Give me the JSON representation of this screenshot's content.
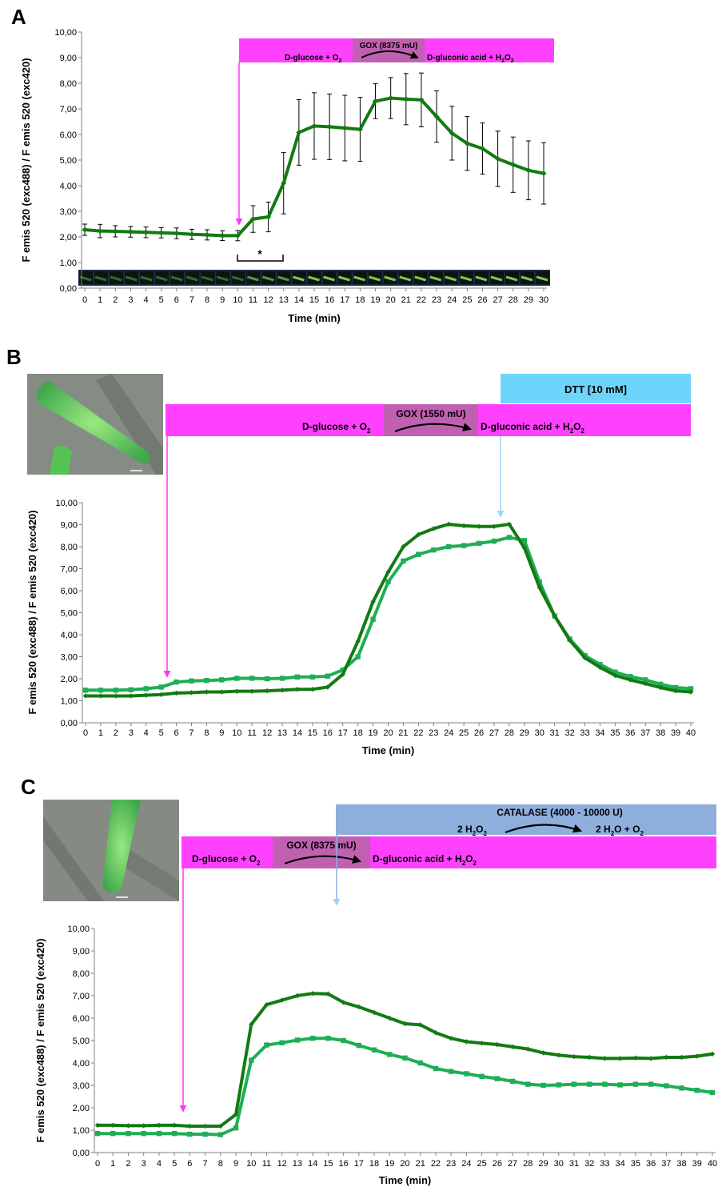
{
  "colors": {
    "dark_green": "#137a12",
    "light_green": "#1fae55",
    "magenta": "#ff40ff",
    "gox_box": "#c060b0",
    "dtt_blue": "#6fd4fb",
    "catalase_blue": "#8eaedc",
    "arrow_magenta": "#ff33ff",
    "arrow_blue": "#9ad6f5"
  },
  "panels": [
    {
      "letter": "A",
      "substrate": "D-glucose + O",
      "product": "D-gluconic acid +  H",
      "gox": "GOX (8375 mU)",
      "significance": "*"
    },
    {
      "letter": "B",
      "substrate": "D-glucose + O",
      "product": "D-gluconic acid +  H",
      "gox": "GOX (1550 mU)",
      "inhibitor": "DTT [10 mM]"
    },
    {
      "letter": "C",
      "substrate": "D-glucose + O",
      "product": "D-gluconic acid +  H",
      "gox": "GOX (8375 mU)",
      "inhibitor": "CATALASE (4000 - 10000 U)",
      "catalase_left": "2 H",
      "catalase_right": "2 H"
    }
  ],
  "chart_data": [
    {
      "type": "line",
      "panel": "A",
      "xlabel": "Time (min)",
      "ylabel": "F emis 520 (exc488) / F emis 520 (exc420)",
      "ylim": [
        0,
        10
      ],
      "yticks": [
        "0,00",
        "1,00",
        "2,00",
        "3,00",
        "4,00",
        "5,00",
        "6,00",
        "7,00",
        "8,00",
        "9,00",
        "10,00"
      ],
      "x": [
        0,
        1,
        2,
        3,
        4,
        5,
        6,
        7,
        8,
        9,
        10,
        11,
        12,
        13,
        14,
        15,
        16,
        17,
        18,
        19,
        20,
        21,
        22,
        23,
        24,
        25,
        26,
        27,
        28,
        29,
        30
      ],
      "series": [
        {
          "color": "#137a12",
          "values": [
            2.28,
            2.23,
            2.22,
            2.2,
            2.18,
            2.16,
            2.14,
            2.1,
            2.08,
            2.05,
            2.05,
            2.7,
            2.78,
            4.1,
            6.08,
            6.33,
            6.3,
            6.25,
            6.2,
            7.3,
            7.42,
            7.38,
            7.35,
            6.7,
            6.05,
            5.65,
            5.45,
            5.05,
            4.82,
            4.6,
            4.48
          ],
          "errors": [
            0.22,
            0.26,
            0.22,
            0.21,
            0.21,
            0.2,
            0.21,
            0.2,
            0.2,
            0.19,
            0.2,
            0.52,
            0.58,
            1.2,
            1.28,
            1.3,
            1.28,
            1.28,
            1.25,
            0.68,
            0.8,
            1.0,
            1.05,
            1.0,
            1.05,
            1.05,
            1.0,
            1.08,
            1.08,
            1.15,
            1.2
          ]
        }
      ],
      "grid": false
    },
    {
      "type": "line",
      "panel": "B",
      "xlabel": "Time (min)",
      "ylabel": "F emis 520 (exc488) / F emis 520 (exc420)",
      "ylim": [
        0,
        10
      ],
      "yticks": [
        "0,00",
        "1,00",
        "2,00",
        "3,00",
        "4,00",
        "5,00",
        "6,00",
        "7,00",
        "8,00",
        "9,00",
        "10,00"
      ],
      "x": [
        0,
        1,
        2,
        3,
        4,
        5,
        6,
        7,
        8,
        9,
        10,
        11,
        12,
        13,
        14,
        15,
        16,
        17,
        18,
        19,
        20,
        21,
        22,
        23,
        24,
        25,
        26,
        27,
        28,
        29,
        30,
        31,
        32,
        33,
        34,
        35,
        36,
        37,
        38,
        39,
        40
      ],
      "series": [
        {
          "color": "#137a12",
          "values": [
            1.22,
            1.22,
            1.22,
            1.22,
            1.25,
            1.28,
            1.35,
            1.37,
            1.4,
            1.4,
            1.43,
            1.43,
            1.45,
            1.48,
            1.52,
            1.52,
            1.62,
            2.2,
            3.7,
            5.5,
            6.85,
            8.0,
            8.55,
            8.82,
            9.02,
            8.95,
            8.92,
            8.92,
            9.02,
            7.95,
            6.15,
            4.85,
            3.75,
            2.95,
            2.52,
            2.15,
            1.95,
            1.78,
            1.6,
            1.45,
            1.4
          ]
        },
        {
          "color": "#1fae55",
          "values": [
            1.48,
            1.48,
            1.48,
            1.5,
            1.55,
            1.62,
            1.85,
            1.9,
            1.92,
            1.95,
            2.02,
            2.02,
            2.0,
            2.02,
            2.08,
            2.08,
            2.12,
            2.4,
            3.0,
            4.7,
            6.4,
            7.35,
            7.65,
            7.85,
            8.0,
            8.05,
            8.15,
            8.25,
            8.42,
            8.28,
            6.4,
            4.85,
            3.8,
            3.05,
            2.65,
            2.3,
            2.1,
            1.95,
            1.75,
            1.6,
            1.55
          ]
        }
      ],
      "grid": false
    },
    {
      "type": "line",
      "panel": "C",
      "xlabel": "Time (min)",
      "ylabel": "F emis 520 (exc488) / F emis 520 (exc420)",
      "ylim": [
        0,
        10
      ],
      "yticks": [
        "0,00",
        "1,00",
        "2,00",
        "3,00",
        "4,00",
        "5,00",
        "6,00",
        "7,00",
        "8,00",
        "9,00",
        "10,00"
      ],
      "x": [
        0,
        1,
        2,
        3,
        4,
        5,
        6,
        7,
        8,
        9,
        10,
        11,
        12,
        13,
        14,
        15,
        16,
        17,
        18,
        19,
        20,
        21,
        22,
        23,
        24,
        25,
        26,
        27,
        28,
        29,
        30,
        31,
        32,
        33,
        34,
        35,
        36,
        37,
        38,
        39,
        40
      ],
      "series": [
        {
          "color": "#137a12",
          "values": [
            1.22,
            1.22,
            1.2,
            1.2,
            1.22,
            1.22,
            1.18,
            1.18,
            1.18,
            1.7,
            5.72,
            6.6,
            6.8,
            7.0,
            7.1,
            7.08,
            6.7,
            6.5,
            6.25,
            6.0,
            5.75,
            5.7,
            5.35,
            5.1,
            4.95,
            4.88,
            4.82,
            4.72,
            4.62,
            4.45,
            4.35,
            4.28,
            4.25,
            4.2,
            4.2,
            4.22,
            4.2,
            4.25,
            4.25,
            4.3,
            4.4
          ]
        },
        {
          "color": "#1fae55",
          "values": [
            0.85,
            0.85,
            0.85,
            0.85,
            0.85,
            0.85,
            0.82,
            0.82,
            0.8,
            1.1,
            4.12,
            4.8,
            4.9,
            5.02,
            5.1,
            5.1,
            5.0,
            4.78,
            4.58,
            4.38,
            4.22,
            4.0,
            3.75,
            3.62,
            3.52,
            3.4,
            3.3,
            3.18,
            3.05,
            3.0,
            3.02,
            3.05,
            3.05,
            3.05,
            3.02,
            3.05,
            3.05,
            2.98,
            2.88,
            2.78,
            2.68
          ]
        }
      ],
      "grid": false
    }
  ]
}
